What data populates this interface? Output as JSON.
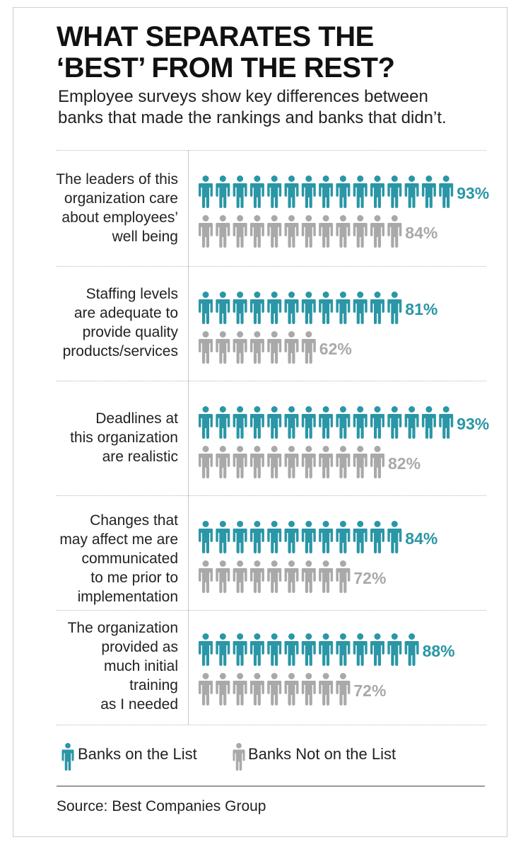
{
  "header": {
    "title_line1": "WHAT SEPARATES THE",
    "title_line2": "‘BEST’ FROM THE REST?",
    "subtitle_line1": "Employee surveys show key differences between",
    "subtitle_line2": "banks that made the rankings and banks that didn’t."
  },
  "colors": {
    "on_list": "#2a96a6",
    "not_on_list": "#a9a9a9"
  },
  "chart_data": {
    "type": "pictograph",
    "title": "WHAT SEPARATES THE ‘BEST’ FROM THE REST?",
    "unit": "%",
    "categories": [
      "The leaders of this organization care about employees’ well being",
      "Staffing levels are adequate to provide quality products/services",
      "Deadlines at this organization are realistic",
      "Changes that may affect me are communicated to me prior to implementation",
      "The organization provided as much initial training as I needed"
    ],
    "series": [
      {
        "name": "Banks on the List",
        "values": [
          93,
          81,
          93,
          84,
          88
        ],
        "labels": [
          "93%",
          "81%",
          "93%",
          "84%",
          "88%"
        ],
        "icon_counts": [
          15,
          12,
          15,
          12,
          13
        ]
      },
      {
        "name": "Banks Not on the List",
        "values": [
          84,
          62,
          82,
          72,
          72
        ],
        "labels": [
          "84%",
          "62%",
          "82%",
          "72%",
          "72%"
        ],
        "icon_counts": [
          12,
          7,
          11,
          9,
          9
        ]
      }
    ]
  },
  "rows": [
    {
      "label_lines": [
        "The leaders of this",
        "organization care",
        "about employees’",
        "well being"
      ]
    },
    {
      "label_lines": [
        "Staffing levels",
        "are adequate to",
        "provide quality",
        "products/services"
      ]
    },
    {
      "label_lines": [
        "Deadlines at",
        "this organization",
        "are realistic"
      ]
    },
    {
      "label_lines": [
        "Changes that",
        "may affect me are",
        "communicated",
        "to me prior to",
        "implementation"
      ]
    },
    {
      "label_lines": [
        "The organization",
        "provided as",
        "much initial",
        "training",
        "as I needed"
      ]
    }
  ],
  "legend": {
    "on_list": "Banks on the List",
    "not_on_list": "Banks Not on the List"
  },
  "footer": {
    "source": "Source: Best Companies Group"
  }
}
